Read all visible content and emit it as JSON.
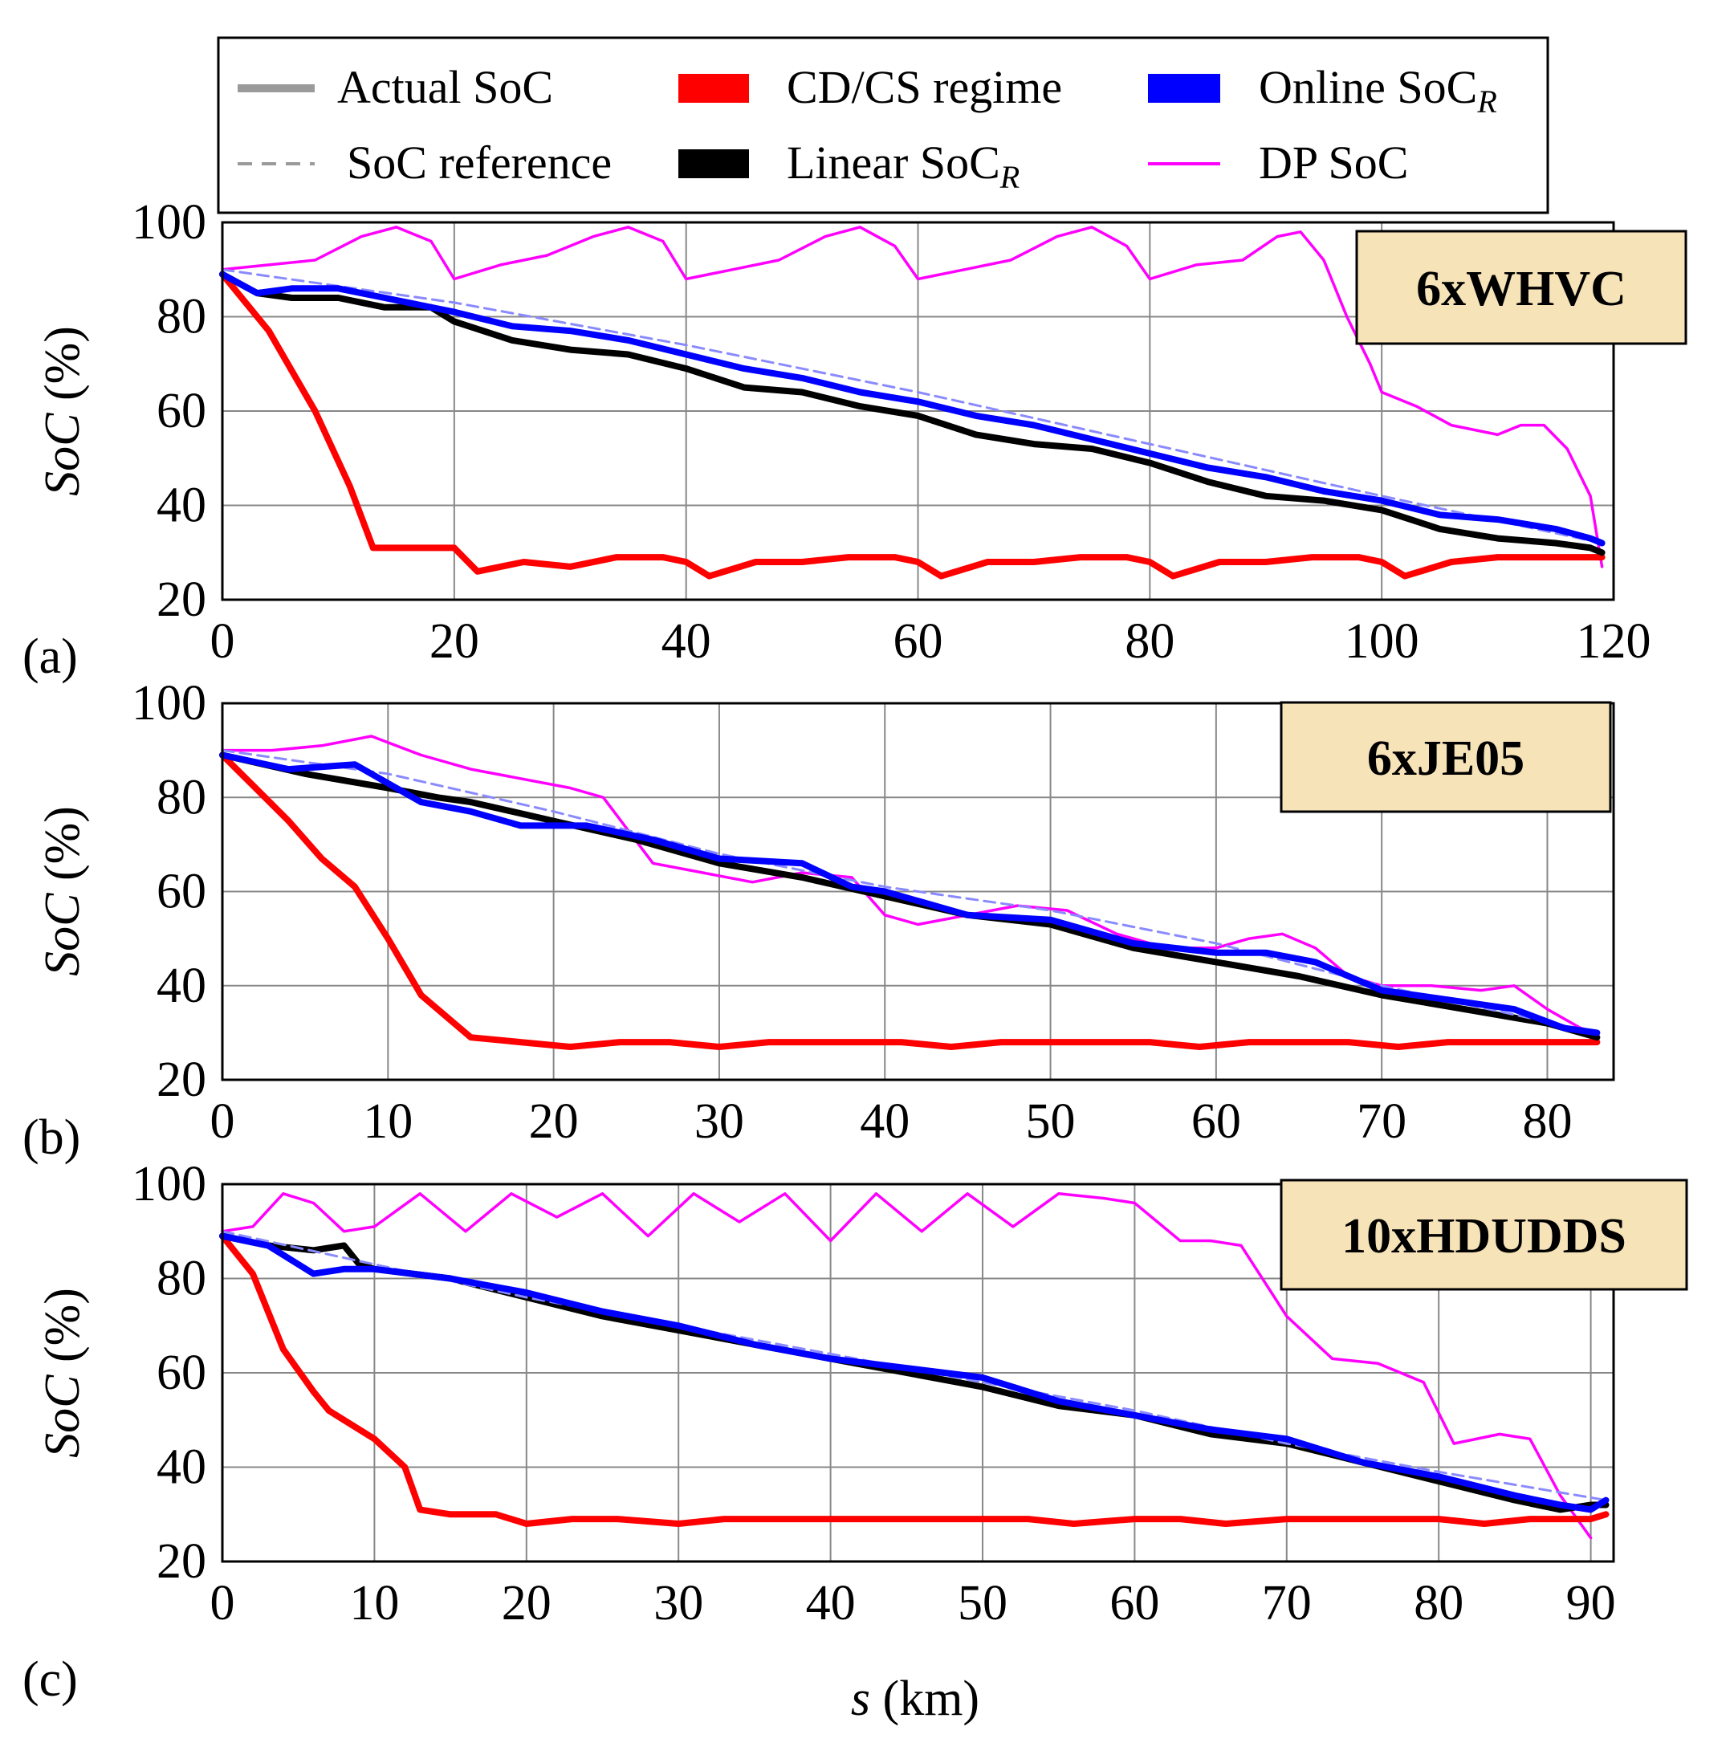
{
  "legend": {
    "items": [
      {
        "label": "Actual SoC",
        "sub": "",
        "color": "#9a9a9a",
        "style": "thick-solid"
      },
      {
        "label": "SoC reference",
        "sub": "",
        "color": "#9a9a9a",
        "style": "dashed"
      },
      {
        "label": "CD/CS regime",
        "sub": "",
        "color": "#ff0000",
        "style": "box"
      },
      {
        "label": "Linear SoC",
        "sub": "R",
        "color": "#000000",
        "style": "box"
      },
      {
        "label": "Online SoC",
        "sub": "R",
        "color": "#0000ff",
        "style": "box"
      },
      {
        "label": "DP SoC",
        "sub": "",
        "color": "#ff00ff",
        "style": "thin"
      }
    ]
  },
  "x_axis_label": {
    "italic": "s",
    "rest": " (km)"
  },
  "y_axis_label": {
    "italic": "SoC",
    "rest": " (%)"
  },
  "chart_data": [
    {
      "type": "line",
      "panel": "(a)",
      "cycle_label": "6xWHVC",
      "xlim": [
        0,
        120
      ],
      "ylim": [
        20,
        100
      ],
      "xticks": [
        0,
        20,
        40,
        60,
        80,
        100,
        120
      ],
      "yticks": [
        20,
        40,
        60,
        80,
        100
      ],
      "grid": true,
      "series": [
        {
          "name": "DP SoC",
          "color": "#ff00ff",
          "x": [
            0,
            4,
            8,
            12,
            15,
            18,
            20,
            24,
            28,
            32,
            35,
            38,
            40,
            44,
            48,
            52,
            55,
            58,
            60,
            64,
            68,
            72,
            75,
            78,
            80,
            84,
            88,
            91,
            93,
            95,
            97,
            99,
            100,
            103,
            106,
            110,
            112,
            114,
            116,
            118,
            119
          ],
          "y": [
            90,
            91,
            92,
            97,
            99,
            96,
            88,
            91,
            93,
            97,
            99,
            96,
            88,
            90,
            92,
            97,
            99,
            95,
            88,
            90,
            92,
            97,
            99,
            95,
            88,
            91,
            92,
            97,
            98,
            92,
            80,
            70,
            64,
            61,
            57,
            55,
            57,
            57,
            52,
            42,
            27
          ]
        },
        {
          "name": "CD/CS regime",
          "color": "#ff0000",
          "x": [
            0,
            4,
            8,
            11,
            13,
            14,
            17,
            20,
            22,
            26,
            30,
            34,
            38,
            40,
            42,
            46,
            50,
            54,
            58,
            60,
            62,
            66,
            70,
            74,
            78,
            80,
            82,
            86,
            90,
            94,
            98,
            100,
            102,
            106,
            110,
            114,
            118,
            119
          ],
          "y": [
            89,
            77,
            60,
            44,
            31,
            31,
            31,
            31,
            26,
            28,
            27,
            29,
            29,
            28,
            25,
            28,
            28,
            29,
            29,
            28,
            25,
            28,
            28,
            29,
            29,
            28,
            25,
            28,
            28,
            29,
            29,
            28,
            25,
            28,
            29,
            29,
            29,
            29
          ]
        },
        {
          "name": "Linear SoC_R",
          "color": "#000000",
          "x": [
            0,
            3,
            6,
            10,
            14,
            18,
            20,
            25,
            30,
            35,
            40,
            45,
            50,
            55,
            60,
            65,
            70,
            75,
            80,
            85,
            90,
            95,
            100,
            105,
            110,
            115,
            118,
            119
          ],
          "y": [
            89,
            85,
            84,
            84,
            82,
            82,
            79,
            75,
            73,
            72,
            69,
            65,
            64,
            61,
            59,
            55,
            53,
            52,
            49,
            45,
            42,
            41,
            39,
            35,
            33,
            32,
            31,
            30
          ]
        },
        {
          "name": "Online SoC_R",
          "color": "#0000ff",
          "x": [
            0,
            3,
            6,
            10,
            14,
            18,
            20,
            25,
            30,
            35,
            40,
            45,
            50,
            55,
            60,
            65,
            70,
            75,
            80,
            85,
            90,
            95,
            100,
            105,
            110,
            115,
            118,
            119
          ],
          "y": [
            89,
            85,
            86,
            86,
            84,
            82,
            81,
            78,
            77,
            75,
            72,
            69,
            67,
            64,
            62,
            59,
            57,
            54,
            51,
            48,
            46,
            43,
            41,
            38,
            37,
            35,
            33,
            32
          ]
        },
        {
          "name": "SoC reference",
          "color": "#8a8aff",
          "x": [
            0,
            20,
            40,
            60,
            80,
            100,
            119
          ],
          "y": [
            90,
            83,
            74,
            64,
            53,
            42,
            32
          ]
        }
      ]
    },
    {
      "type": "line",
      "panel": "(b)",
      "cycle_label": "6xJE05",
      "xlim": [
        0,
        84
      ],
      "ylim": [
        20,
        100
      ],
      "xticks": [
        0,
        10,
        20,
        30,
        40,
        50,
        60,
        70,
        80
      ],
      "yticks": [
        20,
        40,
        60,
        80,
        100
      ],
      "grid": true,
      "series": [
        {
          "name": "DP SoC",
          "color": "#ff00ff",
          "x": [
            0,
            3,
            6,
            9,
            12,
            15,
            18,
            21,
            23,
            26,
            29,
            32,
            35,
            38,
            40,
            42,
            45,
            48,
            51,
            54,
            57,
            60,
            62,
            64,
            66,
            68,
            70,
            73,
            76,
            78,
            80,
            82,
            83
          ],
          "y": [
            90,
            90,
            91,
            93,
            89,
            86,
            84,
            82,
            80,
            66,
            64,
            62,
            64,
            63,
            55,
            53,
            55,
            57,
            56,
            51,
            48,
            48,
            50,
            51,
            48,
            42,
            40,
            40,
            39,
            40,
            35,
            31,
            30
          ]
        },
        {
          "name": "CD/CS regime",
          "color": "#ff0000",
          "x": [
            0,
            2,
            4,
            6,
            8,
            10,
            12,
            13,
            15,
            18,
            21,
            24,
            27,
            30,
            33,
            36,
            39,
            41,
            44,
            47,
            50,
            53,
            56,
            59,
            62,
            65,
            68,
            71,
            74,
            77,
            80,
            83
          ],
          "y": [
            89,
            82,
            75,
            67,
            61,
            50,
            38,
            35,
            29,
            28,
            27,
            28,
            28,
            27,
            28,
            28,
            28,
            28,
            27,
            28,
            28,
            28,
            28,
            27,
            28,
            28,
            28,
            27,
            28,
            28,
            28,
            28
          ]
        },
        {
          "name": "Linear SoC_R",
          "color": "#000000",
          "x": [
            0,
            5,
            10,
            13,
            15,
            20,
            25,
            30,
            35,
            40,
            45,
            50,
            55,
            60,
            65,
            70,
            75,
            80,
            83
          ],
          "y": [
            89,
            85,
            82,
            80,
            79,
            75,
            71,
            66,
            63,
            59,
            55,
            53,
            48,
            45,
            42,
            38,
            35,
            32,
            29
          ]
        },
        {
          "name": "Online SoC_R",
          "color": "#0000ff",
          "x": [
            0,
            4,
            8,
            10,
            12,
            15,
            18,
            22,
            26,
            30,
            35,
            38,
            40,
            45,
            50,
            55,
            60,
            63,
            66,
            70,
            74,
            78,
            81,
            83
          ],
          "y": [
            89,
            86,
            87,
            83,
            79,
            77,
            74,
            74,
            71,
            67,
            66,
            61,
            60,
            55,
            54,
            49,
            47,
            47,
            45,
            39,
            37,
            35,
            31,
            30
          ]
        },
        {
          "name": "SoC reference",
          "color": "#8a8aff",
          "x": [
            0,
            10,
            20,
            30,
            40,
            50,
            60,
            70,
            83
          ],
          "y": [
            90,
            85,
            77,
            68,
            61,
            56,
            49,
            40,
            30
          ]
        }
      ]
    },
    {
      "type": "line",
      "panel": "(c)",
      "cycle_label": "10xHDUDDS",
      "xlim": [
        0,
        91.5
      ],
      "ylim": [
        20,
        100
      ],
      "xticks": [
        0,
        10,
        20,
        30,
        40,
        50,
        60,
        70,
        80,
        90
      ],
      "yticks": [
        20,
        40,
        60,
        80,
        100
      ],
      "grid": true,
      "series": [
        {
          "name": "DP SoC",
          "color": "#ff00ff",
          "x": [
            0,
            2,
            4,
            6,
            8,
            10,
            13,
            16,
            19,
            22,
            25,
            28,
            31,
            34,
            37,
            40,
            43,
            46,
            49,
            52,
            55,
            58,
            60,
            63,
            65,
            67,
            70,
            73,
            76,
            79,
            81,
            84,
            86,
            88,
            90
          ],
          "y": [
            90,
            91,
            98,
            96,
            90,
            91,
            98,
            90,
            98,
            93,
            98,
            89,
            98,
            92,
            98,
            88,
            98,
            90,
            98,
            91,
            98,
            97,
            96,
            88,
            88,
            87,
            72,
            63,
            62,
            58,
            45,
            47,
            46,
            34,
            25
          ]
        },
        {
          "name": "CD/CS regime",
          "color": "#ff0000",
          "x": [
            0,
            2,
            4,
            6,
            7,
            8,
            10,
            12,
            13,
            15,
            18,
            20,
            23,
            26,
            30,
            33,
            36,
            40,
            43,
            46,
            50,
            53,
            56,
            60,
            63,
            66,
            70,
            73,
            76,
            80,
            83,
            86,
            90,
            91
          ],
          "y": [
            89,
            81,
            65,
            56,
            52,
            50,
            46,
            40,
            31,
            30,
            30,
            28,
            29,
            29,
            28,
            29,
            29,
            29,
            29,
            29,
            29,
            29,
            28,
            29,
            29,
            28,
            29,
            29,
            29,
            29,
            28,
            29,
            29,
            30
          ]
        },
        {
          "name": "Linear SoC_R",
          "color": "#000000",
          "x": [
            0,
            3,
            6,
            8,
            9,
            10,
            15,
            20,
            25,
            30,
            35,
            40,
            45,
            50,
            55,
            60,
            65,
            70,
            75,
            80,
            85,
            88,
            90,
            91
          ],
          "y": [
            89,
            87,
            86,
            87,
            83,
            82,
            80,
            76,
            72,
            69,
            66,
            63,
            60,
            57,
            53,
            51,
            47,
            45,
            41,
            37,
            33,
            31,
            32,
            32
          ]
        },
        {
          "name": "Online SoC_R",
          "color": "#0000ff",
          "x": [
            0,
            3,
            6,
            8,
            10,
            15,
            20,
            25,
            30,
            35,
            40,
            45,
            50,
            55,
            60,
            65,
            70,
            75,
            80,
            85,
            88,
            90,
            91
          ],
          "y": [
            89,
            87,
            81,
            82,
            82,
            80,
            77,
            73,
            70,
            66,
            63,
            61,
            59,
            54,
            51,
            48,
            46,
            41,
            38,
            34,
            32,
            31,
            33
          ]
        },
        {
          "name": "SoC reference",
          "color": "#8a8aff",
          "x": [
            0,
            10,
            20,
            30,
            40,
            50,
            60,
            70,
            80,
            91
          ],
          "y": [
            90,
            83,
            76,
            70,
            64,
            58,
            52,
            45,
            39,
            33
          ]
        }
      ]
    }
  ]
}
